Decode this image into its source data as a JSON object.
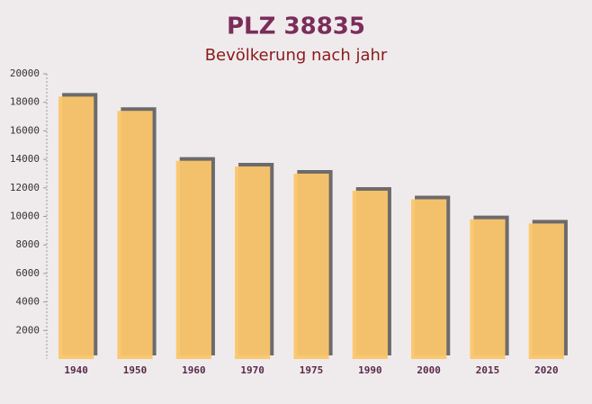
{
  "chart_data": {
    "type": "bar",
    "title": "PLZ 38835",
    "subtitle": "Bevölkerung nach jahr",
    "categories": [
      "1940",
      "1950",
      "1960",
      "1970",
      "1975",
      "1990",
      "2000",
      "2015",
      "2020"
    ],
    "values": [
      18400,
      17400,
      13900,
      13500,
      13000,
      11800,
      11200,
      9800,
      9500
    ],
    "color": "#fbc66b",
    "ylim": [
      0,
      20000
    ],
    "yticks": [
      2000,
      4000,
      6000,
      8000,
      10000,
      12000,
      14000,
      16000,
      18000,
      20000
    ]
  }
}
